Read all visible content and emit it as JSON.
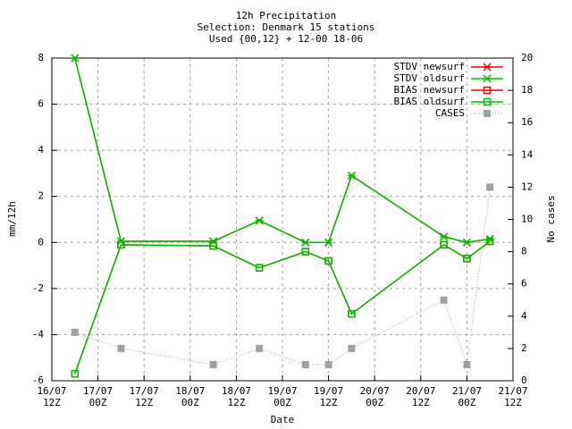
{
  "chart_data": {
    "type": "line",
    "title": [
      "12h Precipitation",
      "Selection: Denmark     15 stations",
      "Used {00,12} + 12-00 18-06"
    ],
    "xlabel": "Date",
    "ylabel": "mm/12h",
    "y2label": "No cases",
    "x": [
      6,
      18,
      42,
      54,
      66,
      72,
      78,
      102,
      108,
      114
    ],
    "xlim": [
      0,
      120
    ],
    "xticks": [
      {
        "value": 0,
        "label": [
          "16/07",
          "12Z"
        ]
      },
      {
        "value": 12,
        "label": [
          "17/07",
          "00Z"
        ]
      },
      {
        "value": 24,
        "label": [
          "17/07",
          "12Z"
        ]
      },
      {
        "value": 36,
        "label": [
          "18/07",
          "00Z"
        ]
      },
      {
        "value": 48,
        "label": [
          "18/07",
          "12Z"
        ]
      },
      {
        "value": 60,
        "label": [
          "19/07",
          "00Z"
        ]
      },
      {
        "value": 72,
        "label": [
          "19/07",
          "12Z"
        ]
      },
      {
        "value": 84,
        "label": [
          "20/07",
          "00Z"
        ]
      },
      {
        "value": 96,
        "label": [
          "20/07",
          "12Z"
        ]
      },
      {
        "value": 108,
        "label": [
          "21/07",
          "00Z"
        ]
      },
      {
        "value": 120,
        "label": [
          "21/07",
          "12Z"
        ]
      }
    ],
    "ylim": [
      -6,
      8
    ],
    "yticks": [
      -6,
      -4,
      -2,
      0,
      2,
      4,
      6,
      8
    ],
    "y2lim": [
      0,
      20
    ],
    "y2ticks": [
      0,
      2,
      4,
      6,
      8,
      10,
      12,
      14,
      16,
      18,
      20
    ],
    "grid": true,
    "series": [
      {
        "name": "STDV newsurf",
        "color": "#ff0000",
        "marker": "cross",
        "values": [
          8,
          0.05,
          0.05,
          0.95,
          0.0,
          0.0,
          2.9,
          0.25,
          0.0,
          0.15
        ]
      },
      {
        "name": "STDV oldsurf",
        "color": "#00c000",
        "marker": "cross",
        "values": [
          8,
          0.05,
          0.05,
          0.95,
          0.0,
          0.0,
          2.9,
          0.25,
          0.0,
          0.15
        ]
      },
      {
        "name": "BIAS newsurf",
        "color": "#ff0000",
        "marker": "square",
        "values": [
          -5.7,
          -0.1,
          -0.15,
          -1.1,
          -0.4,
          -0.8,
          -3.1,
          -0.1,
          -0.7,
          0.05
        ]
      },
      {
        "name": "BIAS oldsurf",
        "color": "#00c000",
        "marker": "square",
        "values": [
          -5.7,
          -0.1,
          -0.15,
          -1.1,
          -0.4,
          -0.8,
          -3.1,
          -0.1,
          -0.7,
          0.05
        ]
      },
      {
        "name": "CASES",
        "color": "#a0a0a0",
        "marker": "filled-square",
        "line_style": "dotted",
        "axis": "y2",
        "values": [
          3,
          2,
          1,
          2,
          1,
          1,
          2,
          5,
          1,
          12
        ]
      }
    ]
  }
}
